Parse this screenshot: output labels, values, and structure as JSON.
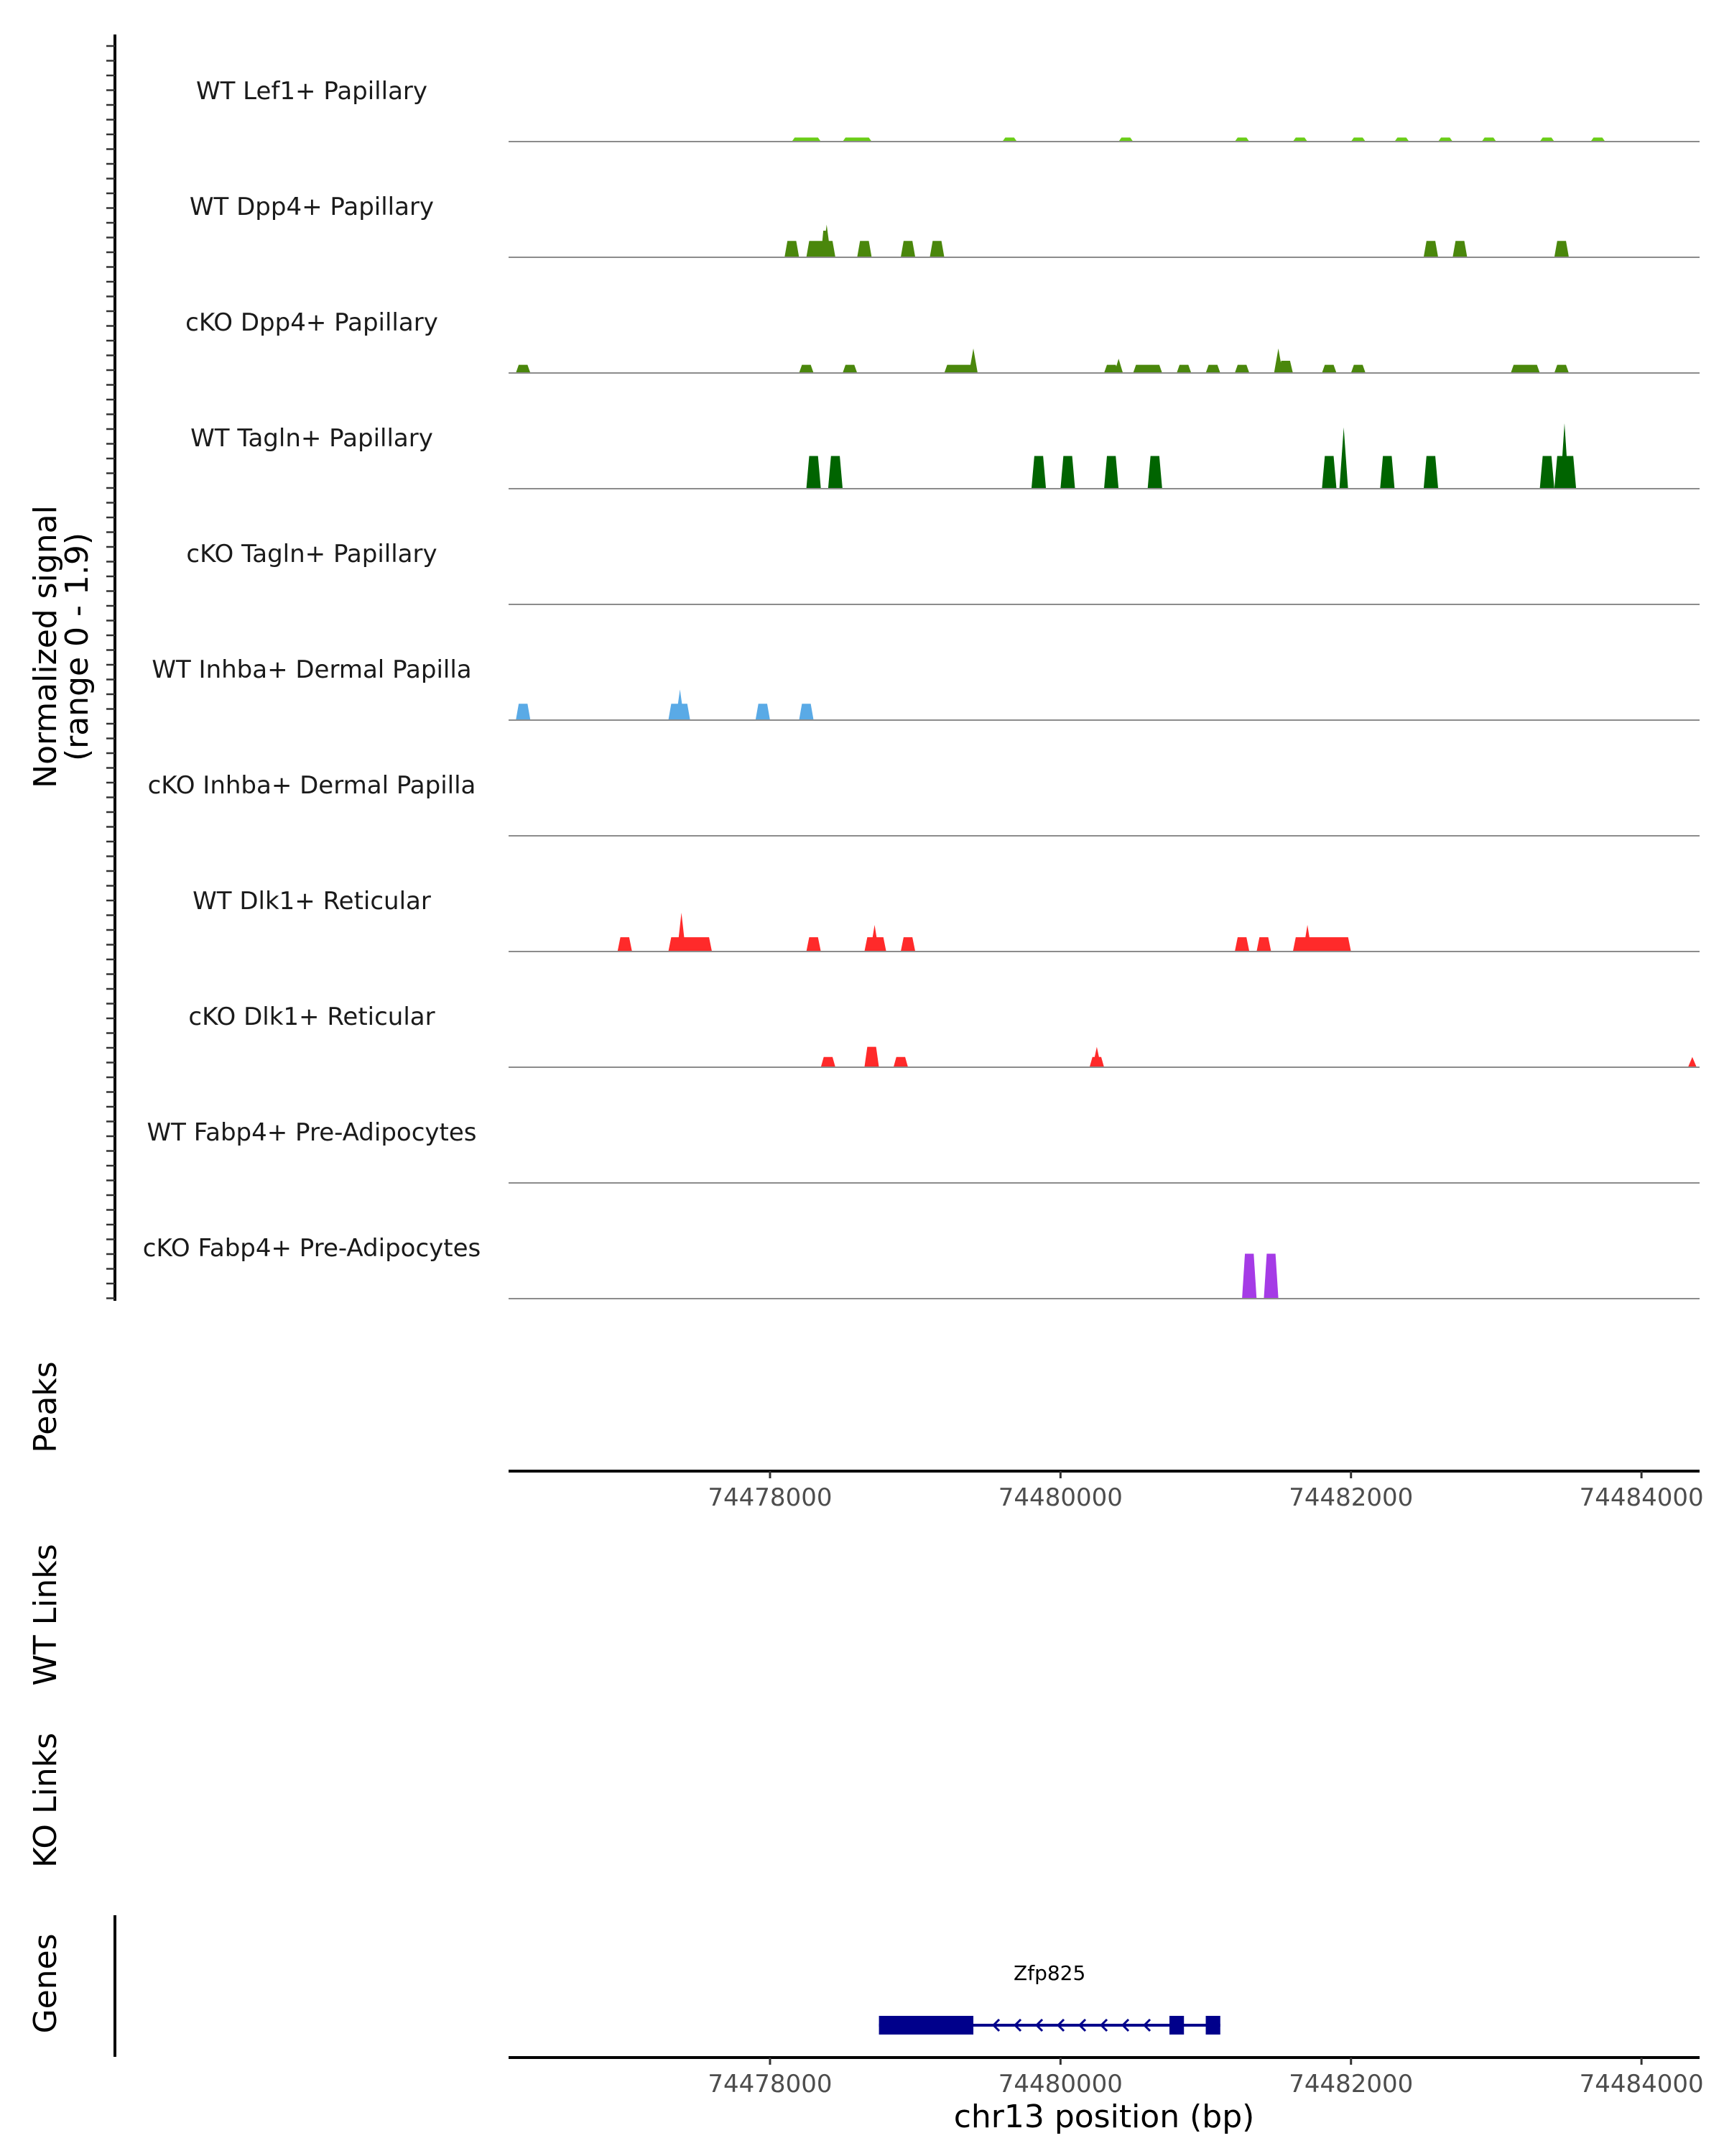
{
  "chart_data": {
    "type": "area",
    "region": "chr13",
    "xlim": [
      74476200,
      74484400
    ],
    "xlabel": "chr13 position (bp)",
    "ylabel": "Normalized signal",
    "ylabel_sub": "(range 0 - 1.9)",
    "ylim": [
      0,
      1.9
    ],
    "x_ticks": [
      74478000,
      74480000,
      74482000,
      74484000
    ],
    "panel_labels": {
      "peaks": "Peaks",
      "wt_links": "WT Links",
      "ko_links": "KO Links",
      "genes": "Genes"
    },
    "series": [
      {
        "name": "WT Lef1+ Papillary",
        "color": "#6acd17",
        "blocks": [
          [
            74478150,
            74478350,
            0.1
          ],
          [
            74478500,
            74478700,
            0.1
          ],
          [
            74479600,
            74479700,
            0.1
          ],
          [
            74480400,
            74480500,
            0.1
          ],
          [
            74481200,
            74481300,
            0.1
          ],
          [
            74481600,
            74481700,
            0.1
          ],
          [
            74482000,
            74482100,
            0.1
          ],
          [
            74482300,
            74482400,
            0.1
          ],
          [
            74482600,
            74482700,
            0.1
          ],
          [
            74482900,
            74483000,
            0.1
          ],
          [
            74483300,
            74483400,
            0.1
          ],
          [
            74483650,
            74483750,
            0.1
          ]
        ],
        "peaks": []
      },
      {
        "name": "WT Dpp4+ Papillary",
        "color": "#4a870c",
        "blocks": [
          [
            74478100,
            74478200,
            0.4
          ],
          [
            74478250,
            74478450,
            0.4
          ],
          [
            74478350,
            74478400,
            0.65
          ],
          [
            74478600,
            74478700,
            0.4
          ],
          [
            74478900,
            74479000,
            0.4
          ],
          [
            74479100,
            74479200,
            0.4
          ],
          [
            74482500,
            74482600,
            0.4
          ],
          [
            74482700,
            74482800,
            0.4
          ],
          [
            74483400,
            74483500,
            0.4
          ]
        ],
        "peaks": [
          [
            74478390,
            0.8
          ]
        ]
      },
      {
        "name": "cKO Dpp4+ Papillary",
        "color": "#4a870c",
        "blocks": [
          [
            74476250,
            74476350,
            0.2
          ],
          [
            74478200,
            74478300,
            0.2
          ],
          [
            74478500,
            74478600,
            0.2
          ],
          [
            74479200,
            74479400,
            0.2
          ],
          [
            74480300,
            74480400,
            0.2
          ],
          [
            74480500,
            74480700,
            0.2
          ],
          [
            74480800,
            74480900,
            0.2
          ],
          [
            74481000,
            74481100,
            0.2
          ],
          [
            74481200,
            74481300,
            0.2
          ],
          [
            74481500,
            74481600,
            0.3
          ],
          [
            74481800,
            74481900,
            0.2
          ],
          [
            74482000,
            74482100,
            0.2
          ],
          [
            74483100,
            74483300,
            0.2
          ],
          [
            74483400,
            74483500,
            0.2
          ]
        ],
        "peaks": [
          [
            74479400,
            0.6
          ],
          [
            74480400,
            0.35
          ],
          [
            74481500,
            0.6
          ]
        ]
      },
      {
        "name": "WT Tagln+ Papillary",
        "color": "#006400",
        "blocks": [
          [
            74478250,
            74478350,
            0.8
          ],
          [
            74478400,
            74478500,
            0.8
          ],
          [
            74479800,
            74479900,
            0.8
          ],
          [
            74480000,
            74480100,
            0.8
          ],
          [
            74480300,
            74480400,
            0.8
          ],
          [
            74480600,
            74480700,
            0.8
          ],
          [
            74481800,
            74481900,
            0.8
          ],
          [
            74482200,
            74482300,
            0.8
          ],
          [
            74482500,
            74482600,
            0.8
          ],
          [
            74483300,
            74483400,
            0.8
          ],
          [
            74483400,
            74483550,
            0.8
          ]
        ],
        "peaks": [
          [
            74481950,
            1.5
          ],
          [
            74483470,
            1.6
          ]
        ]
      },
      {
        "name": "cKO Tagln+ Papillary",
        "color": "#006400",
        "blocks": [],
        "peaks": []
      },
      {
        "name": "WT Inhba+ Dermal Papilla",
        "color": "#5aaae6",
        "blocks": [
          [
            74476250,
            74476350,
            0.4
          ],
          [
            74477300,
            74477450,
            0.4
          ],
          [
            74477900,
            74478000,
            0.4
          ],
          [
            74478200,
            74478300,
            0.4
          ]
        ],
        "peaks": [
          [
            74477380,
            0.75
          ]
        ]
      },
      {
        "name": "cKO Inhba+ Dermal Papilla",
        "color": "#5aaae6",
        "blocks": [],
        "peaks": []
      },
      {
        "name": "WT Dlk1+ Reticular",
        "color": "#ff2a2a",
        "blocks": [
          [
            74476950,
            74477050,
            0.35
          ],
          [
            74477300,
            74477600,
            0.35
          ],
          [
            74478250,
            74478350,
            0.35
          ],
          [
            74478650,
            74478800,
            0.35
          ],
          [
            74478900,
            74479000,
            0.35
          ],
          [
            74481200,
            74481300,
            0.35
          ],
          [
            74481350,
            74481450,
            0.35
          ],
          [
            74481600,
            74482000,
            0.35
          ]
        ],
        "peaks": [
          [
            74477390,
            0.95
          ],
          [
            74478720,
            0.65
          ],
          [
            74481700,
            0.65
          ]
        ]
      },
      {
        "name": "cKO Dlk1+ Reticular",
        "color": "#ff2a2a",
        "blocks": [
          [
            74478350,
            74478450,
            0.25
          ],
          [
            74478650,
            74478750,
            0.5
          ],
          [
            74478850,
            74478950,
            0.25
          ],
          [
            74480200,
            74480300,
            0.25
          ]
        ],
        "peaks": [
          [
            74480250,
            0.5
          ],
          [
            74484350,
            0.25
          ]
        ]
      },
      {
        "name": "WT Fabp4+ Pre-Adipocytes",
        "color": "#a53be6",
        "blocks": [],
        "peaks": []
      },
      {
        "name": "cKO Fabp4+ Pre-Adipocytes",
        "color": "#a53be6",
        "blocks": [
          [
            74481250,
            74481350,
            1.1
          ],
          [
            74481400,
            74481500,
            1.1
          ]
        ],
        "peaks": []
      }
    ],
    "genes": [
      {
        "name": "Zfp825",
        "strand": "-",
        "start": 74478750,
        "end": 74481100,
        "color": "#00008b",
        "exons": [
          [
            74478750,
            74479400
          ],
          [
            74480750,
            74480850
          ],
          [
            74481000,
            74481100
          ]
        ]
      }
    ]
  }
}
